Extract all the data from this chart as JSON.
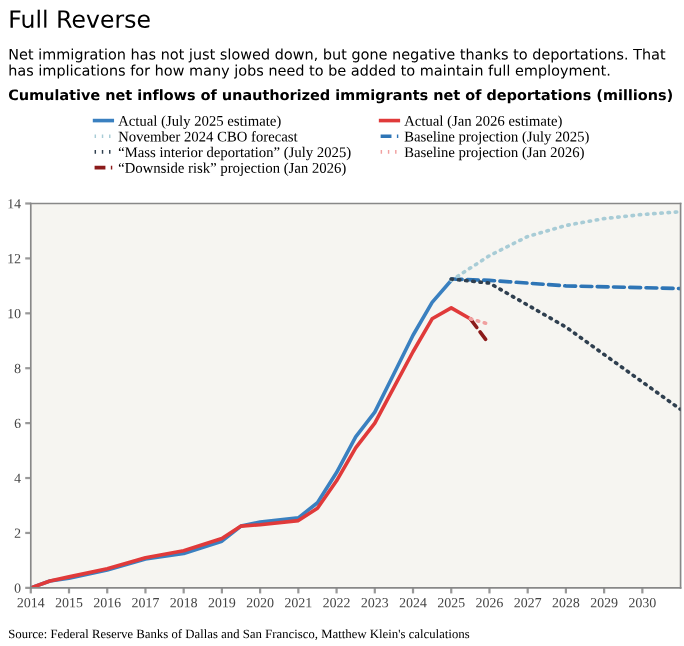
{
  "chart_data": {
    "type": "line",
    "title": "Full Reverse",
    "subtitle": "Net immigration has not just slowed down, but gone negative thanks to deportations. That has implications for how many jobs need to be added to maintain full employment.",
    "annotations": [
      "Cumulative net inflows of unauthorized immigrants net of deportations (millions)",
      "Source: Federal Reserve Banks of Dallas and San Francisco, Matthew Klein's calculations"
    ],
    "series": [
      {
        "name": "Actual (July 2025 estimate)",
        "color": "#3a80c0",
        "line_style": "solid",
        "x": [
          2014,
          2014.5,
          2015,
          2016,
          2017,
          2018,
          2019,
          2019.5,
          2020,
          2021,
          2021.5,
          2022,
          2022.5,
          2023,
          2023.5,
          2024,
          2024.5,
          2025
        ],
        "values": [
          0,
          0.25,
          0.35,
          0.65,
          1.05,
          1.25,
          1.7,
          2.25,
          2.4,
          2.55,
          3.1,
          4.2,
          5.5,
          6.4,
          7.8,
          9.2,
          10.4,
          11.2
        ]
      },
      {
        "name": "November 2024 CBO forecast",
        "color": "#a8ccd6",
        "line_style": "dotted",
        "x": [
          2025,
          2026,
          2027,
          2028,
          2029,
          2030,
          2031
        ],
        "values": [
          11.2,
          12.1,
          12.8,
          13.2,
          13.45,
          13.6,
          13.7
        ]
      },
      {
        "name": "“Mass interior deportation” (July 2025)",
        "color": "#2f3f4f",
        "line_style": "dotted",
        "x": [
          2025,
          2026,
          2027,
          2028,
          2029,
          2030,
          2031
        ],
        "values": [
          11.25,
          11.1,
          10.3,
          9.5,
          8.5,
          7.5,
          6.5
        ]
      },
      {
        "name": "“Downside risk” projection (Jan 2026)",
        "color": "#8b1a1a",
        "line_style": "dashed",
        "x": [
          2025.5,
          2025.9
        ],
        "values": [
          9.8,
          9.05
        ]
      },
      {
        "name": "Actual (Jan 2026 estimate)",
        "color": "#e03a3a",
        "line_style": "solid",
        "x": [
          2014,
          2014.5,
          2015,
          2016,
          2017,
          2018,
          2019,
          2019.5,
          2020,
          2021,
          2021.5,
          2022,
          2022.5,
          2023,
          2023.5,
          2024,
          2024.5,
          2025,
          2025.5
        ],
        "values": [
          0,
          0.25,
          0.4,
          0.7,
          1.1,
          1.35,
          1.8,
          2.25,
          2.3,
          2.45,
          2.9,
          3.9,
          5.1,
          6.0,
          7.3,
          8.6,
          9.8,
          10.2,
          9.8
        ]
      },
      {
        "name": "Baseline projection (July 2025)",
        "color": "#2e75b6",
        "line_style": "dashed",
        "x": [
          2025,
          2026,
          2028,
          2031
        ],
        "values": [
          11.25,
          11.2,
          11.0,
          10.9
        ]
      },
      {
        "name": "Baseline projection (Jan 2026)",
        "color": "#f0a0a0",
        "line_style": "dotted",
        "x": [
          2025.5,
          2026
        ],
        "values": [
          9.8,
          9.6
        ]
      }
    ],
    "xlim": [
      2014,
      2031
    ],
    "xticks": [
      2014,
      2015,
      2016,
      2017,
      2018,
      2019,
      2020,
      2021,
      2022,
      2023,
      2024,
      2025,
      2026,
      2027,
      2028,
      2029,
      2030
    ],
    "ylim": [
      0,
      14
    ],
    "yticks": [
      0,
      2,
      4,
      6,
      8,
      10,
      12,
      14
    ],
    "grid": false,
    "legend": "top",
    "marker": "none"
  }
}
